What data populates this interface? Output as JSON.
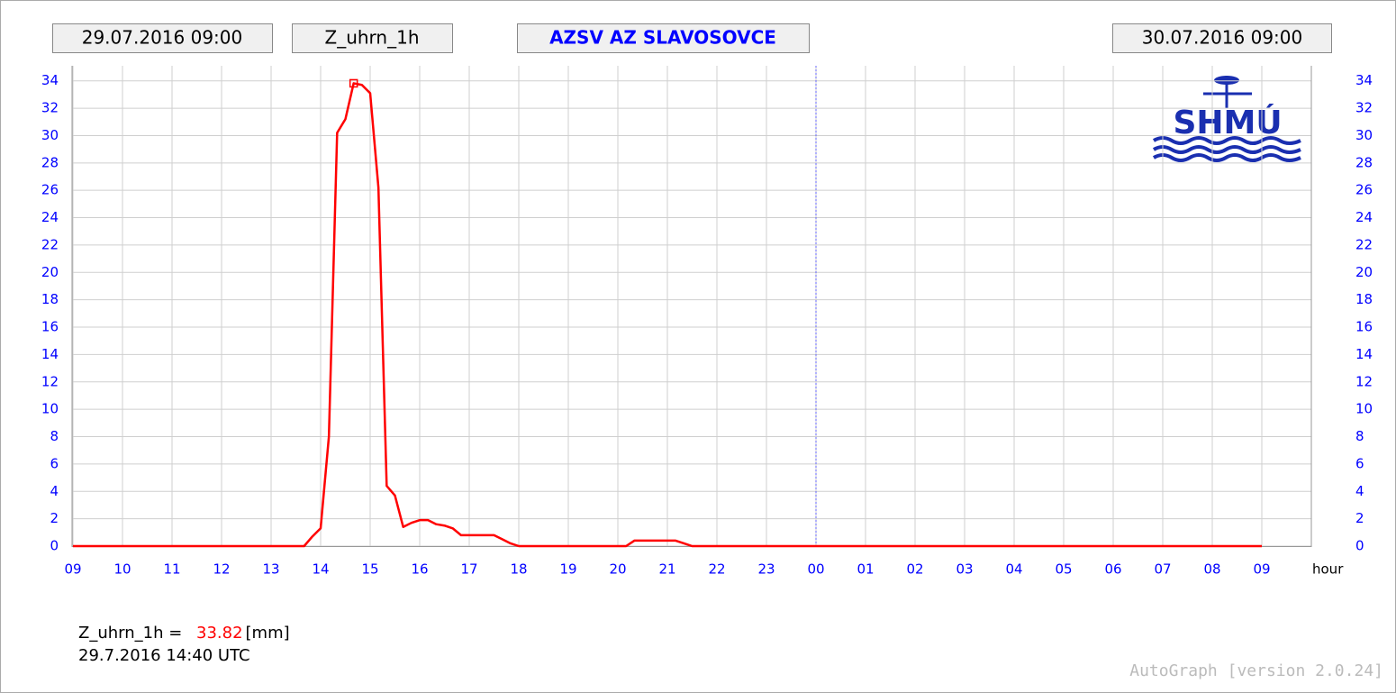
{
  "chart_data": {
    "type": "line",
    "title": "AZSV AZ SLAVOSOVCE",
    "start": "29.07.2016 09:00",
    "end": "30.07.2016 09:00",
    "x_label": "hour",
    "x": [
      0,
      4.6667,
      4.8333,
      5,
      5.1667,
      5.3333,
      5.5,
      5.6667,
      5.8333,
      6,
      6.1667,
      6.3333,
      6.5,
      6.6667,
      6.8333,
      7,
      7.1667,
      7.3333,
      7.5,
      7.6667,
      7.8333,
      8,
      8.1667,
      8.3333,
      8.5,
      8.6667,
      8.8333,
      9,
      11.1667,
      11.3333,
      12.1667,
      12.3333,
      12.5,
      24
    ],
    "series": [
      {
        "name": "Z_uhrn_1h",
        "color": "#ff0000",
        "values": [
          0,
          0,
          0.7,
          1.3,
          8,
          30.2,
          31.2,
          33.82,
          33.7,
          33.1,
          26.2,
          4.4,
          3.7,
          1.4,
          1.7,
          1.9,
          1.9,
          1.6,
          1.5,
          1.3,
          0.8,
          0.8,
          0.8,
          0.8,
          0.8,
          0.5,
          0.2,
          0,
          0,
          0.4,
          0.4,
          0.2,
          0,
          0
        ]
      }
    ],
    "xlim": [
      0,
      25
    ],
    "xticks": [
      {
        "value": 0,
        "label": "09"
      },
      {
        "value": 1,
        "label": "10"
      },
      {
        "value": 2,
        "label": "11"
      },
      {
        "value": 3,
        "label": "12"
      },
      {
        "value": 4,
        "label": "13"
      },
      {
        "value": 5,
        "label": "14"
      },
      {
        "value": 6,
        "label": "15"
      },
      {
        "value": 7,
        "label": "16"
      },
      {
        "value": 8,
        "label": "17"
      },
      {
        "value": 9,
        "label": "18"
      },
      {
        "value": 10,
        "label": "19"
      },
      {
        "value": 11,
        "label": "20"
      },
      {
        "value": 12,
        "label": "21"
      },
      {
        "value": 13,
        "label": "22"
      },
      {
        "value": 14,
        "label": "23"
      },
      {
        "value": 15,
        "label": "00"
      },
      {
        "value": 16,
        "label": "01"
      },
      {
        "value": 17,
        "label": "02"
      },
      {
        "value": 18,
        "label": "03"
      },
      {
        "value": 19,
        "label": "04"
      },
      {
        "value": 20,
        "label": "05"
      },
      {
        "value": 21,
        "label": "06"
      },
      {
        "value": 22,
        "label": "07"
      },
      {
        "value": 23,
        "label": "08"
      },
      {
        "value": 24,
        "label": "09"
      }
    ],
    "ylim": [
      0,
      35.1
    ],
    "yticks": [
      0,
      2,
      4,
      6,
      8,
      10,
      12,
      14,
      16,
      18,
      20,
      22,
      24,
      26,
      28,
      30,
      32,
      34
    ],
    "y2lim": [
      0,
      35.1
    ],
    "y2ticks": [
      0,
      2,
      4,
      6,
      8,
      10,
      12,
      14,
      16,
      18,
      20,
      22,
      24,
      26,
      28,
      30,
      32,
      34
    ],
    "grid": true,
    "marker_x": 15,
    "readout": {
      "label": "Z_uhrn_1h =",
      "value": 33.82,
      "unit": "[mm]",
      "time": "29.7.2016 14:40 UTC"
    }
  },
  "logo": "SHMÚ",
  "footer": "AutoGraph [version 2.0.24]"
}
